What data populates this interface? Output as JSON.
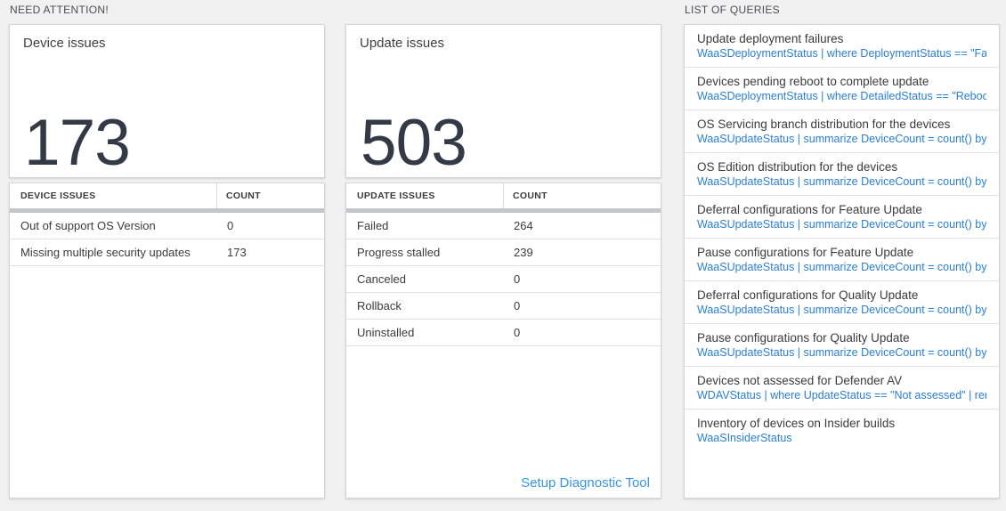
{
  "need_attention": {
    "header": "NEED ATTENTION!",
    "cards": [
      {
        "title": "Device issues",
        "big_number": "173",
        "table": {
          "headers": [
            "DEVICE ISSUES",
            "COUNT"
          ],
          "rows": [
            [
              "Out of support OS Version",
              "0"
            ],
            [
              "Missing multiple security updates",
              "173"
            ]
          ]
        }
      },
      {
        "title": "Update issues",
        "big_number": "503",
        "table": {
          "headers": [
            "UPDATE ISSUES",
            "COUNT"
          ],
          "rows": [
            [
              "Failed",
              "264"
            ],
            [
              "Progress stalled",
              "239"
            ],
            [
              "Canceled",
              "0"
            ],
            [
              "Rollback",
              "0"
            ],
            [
              "Uninstalled",
              "0"
            ]
          ]
        },
        "footer_link": "Setup Diagnostic Tool"
      }
    ]
  },
  "queries": {
    "header": "LIST OF QUERIES",
    "items": [
      {
        "title": "Update deployment failures",
        "query": "WaaSDeploymentStatus | where DeploymentStatus == \"Failed\" |..."
      },
      {
        "title": "Devices pending reboot to complete update",
        "query": "WaaSDeploymentStatus | where DetailedStatus == \"Reboot pend..."
      },
      {
        "title": "OS Servicing branch distribution for the devices",
        "query": "WaaSUpdateStatus | summarize DeviceCount = count() by OSSer..."
      },
      {
        "title": "OS Edition distribution for the devices",
        "query": "WaaSUpdateStatus | summarize DeviceCount = count() by OSEdit..."
      },
      {
        "title": "Deferral configurations for Feature Update",
        "query": "WaaSUpdateStatus | summarize DeviceCount = count() by Featur..."
      },
      {
        "title": "Pause configurations for Feature Update",
        "query": "WaaSUpdateStatus | summarize DeviceCount = count() by Featur..."
      },
      {
        "title": "Deferral configurations for Quality Update",
        "query": "WaaSUpdateStatus | summarize DeviceCount = count() by Qualit..."
      },
      {
        "title": "Pause configurations for Quality Update",
        "query": "WaaSUpdateStatus | summarize DeviceCount = count() by Qualit..."
      },
      {
        "title": "Devices not assessed for Defender AV",
        "query": "WDAVStatus | where UpdateStatus == \"Not assessed\" | render ta..."
      },
      {
        "title": "Inventory of devices on Insider builds",
        "query": "WaaSInsiderStatus"
      }
    ]
  },
  "colors": {
    "page_background": "#f1f1f1",
    "query_link_blue": "#2d7ecb",
    "setup_link_blue": "#3a96dd",
    "big_number_color": "#333a45"
  }
}
